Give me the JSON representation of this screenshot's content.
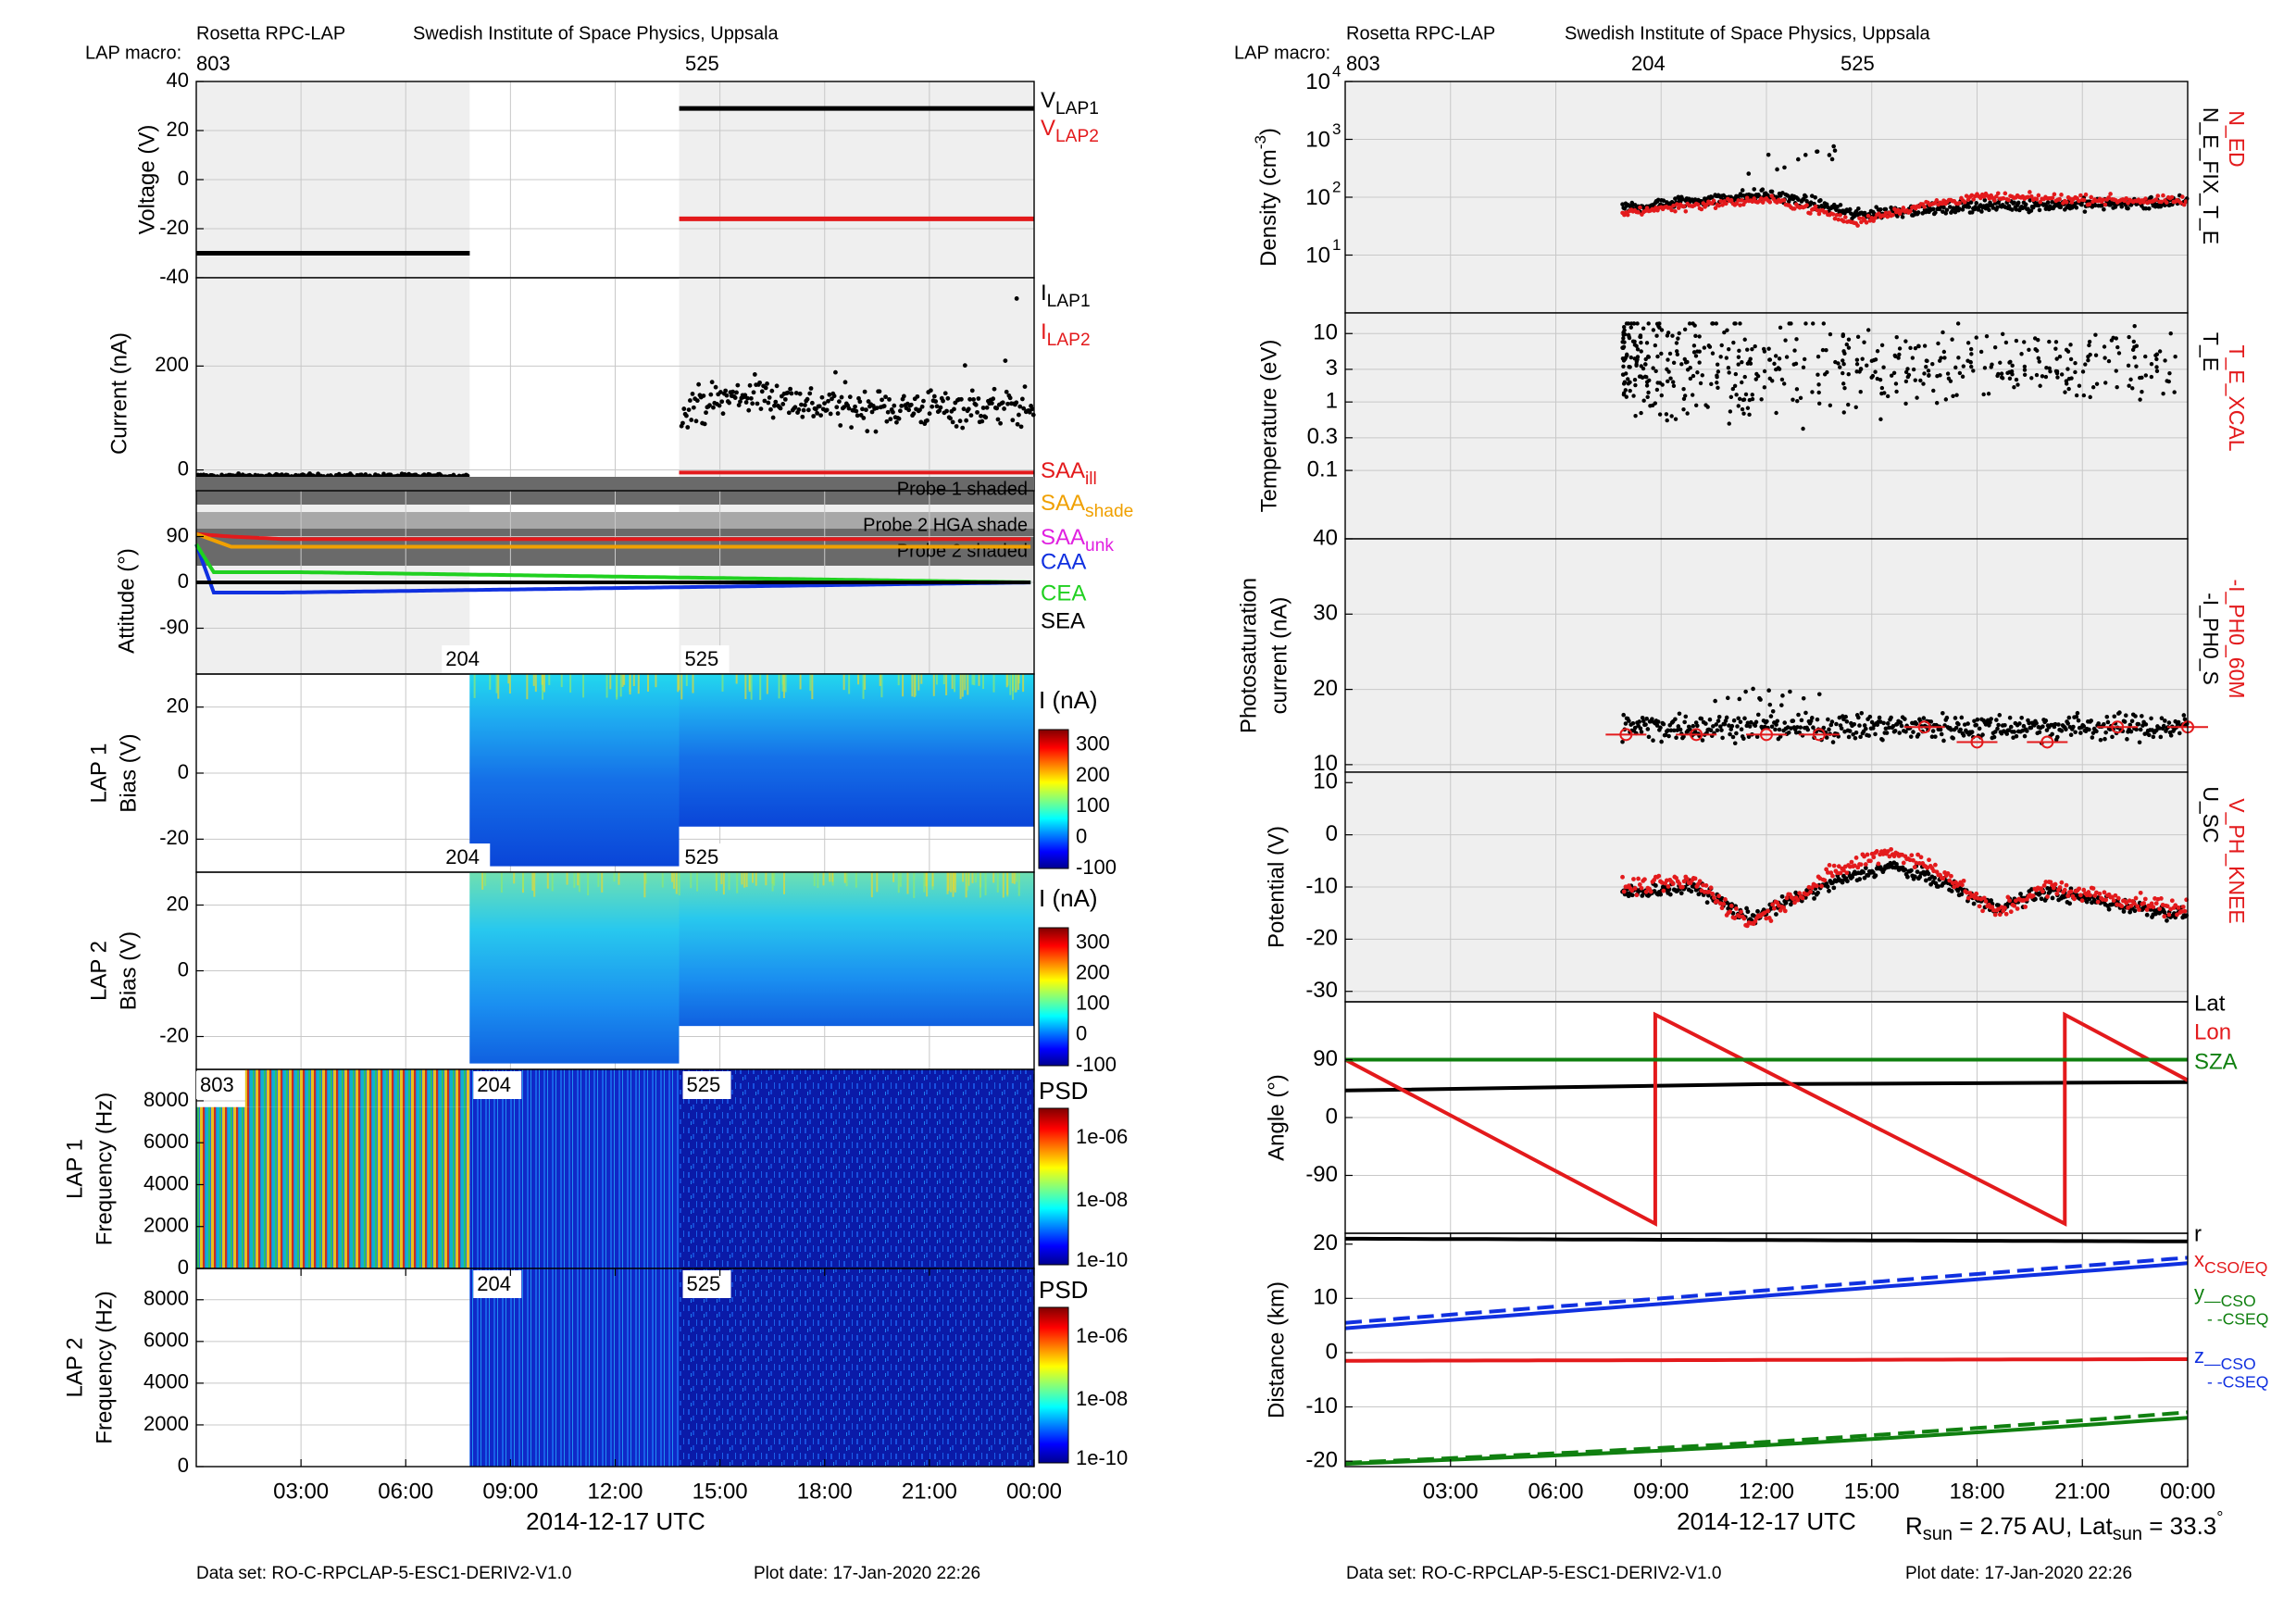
{
  "colors": {
    "black": "#000000",
    "red": "#e31a1c",
    "orange": "#f0a000",
    "magenta": "#e020e0",
    "blue": "#1030e0",
    "green": "#20d020",
    "darkgreen": "#108010",
    "panel_bg": "#efefef",
    "shade_dark": "#6a6a6a",
    "shade_light": "#a8a8a8"
  },
  "left": {
    "header": {
      "instrument": "Rosetta RPC-LAP",
      "institute": "Swedish Institute of Space Physics, Uppsala",
      "macro_label": "LAP macro:",
      "macros": [
        "803",
        "525"
      ]
    },
    "footer": {
      "dataset": "Data set: RO-C-RPCLAP-5-ESC1-DERIV2-V1.0",
      "plotdate": "Plot date: 17-Jan-2020 22:26"
    },
    "xaxis": {
      "ticks": [
        "03:00",
        "06:00",
        "09:00",
        "12:00",
        "15:00",
        "18:00",
        "21:00",
        "00:00"
      ],
      "label": "2014-12-17 UTC"
    },
    "panels": {
      "voltage": {
        "ylabel": "Voltage (V)",
        "ticks": [
          "40",
          "20",
          "0",
          "-20",
          "-40"
        ]
      },
      "current": {
        "ylabel": "Current (nA)",
        "ticks": [
          "200",
          "0"
        ]
      },
      "attitude": {
        "ylabel": "Attitude (°)",
        "ticks": [
          "90",
          "0",
          "-90"
        ]
      },
      "lap1bias": {
        "ylabel1": "LAP 1",
        "ylabel2": "Bias (V)",
        "ticks": [
          "20",
          "0",
          "-20"
        ],
        "tags": [
          "204",
          "525"
        ]
      },
      "lap2bias": {
        "ylabel1": "LAP 2",
        "ylabel2": "Bias (V)",
        "ticks": [
          "20",
          "0",
          "-20"
        ],
        "tags": [
          "204",
          "525"
        ]
      },
      "lap1freq": {
        "ylabel1": "LAP 1",
        "ylabel2": "Frequency (Hz)",
        "ticks": [
          "8000",
          "6000",
          "4000",
          "2000",
          "0"
        ],
        "tags": [
          "803",
          "204",
          "525"
        ]
      },
      "lap2freq": {
        "ylabel1": "LAP 2",
        "ylabel2": "Frequency (Hz)",
        "ticks": [
          "8000",
          "6000",
          "4000",
          "2000",
          "0"
        ],
        "tags": [
          "204",
          "525"
        ]
      }
    },
    "legends": {
      "voltage": [
        {
          "base": "V",
          "sub": "LAP1"
        },
        {
          "base": "V",
          "sub": "LAP2"
        }
      ],
      "current": [
        {
          "base": "I",
          "sub": "LAP1"
        },
        {
          "base": "I",
          "sub": "LAP2"
        }
      ],
      "attitude": [
        {
          "base": "SAA",
          "sub": "ill"
        },
        {
          "base": "SAA",
          "sub": "shade"
        },
        {
          "base": "SAA",
          "sub": "unk"
        },
        {
          "base": "CAA",
          "sub": ""
        },
        {
          "base": "CEA",
          "sub": ""
        },
        {
          "base": "SEA",
          "sub": ""
        }
      ],
      "shades": [
        "Probe 1 shaded",
        "Probe 2 HGA shade",
        "Probe 2 shaded"
      ]
    },
    "colorbars": {
      "bias1": {
        "title": "I (nA)",
        "ticks": [
          "300",
          "200",
          "100",
          "0",
          "-100"
        ]
      },
      "bias2": {
        "title": "I (nA)",
        "ticks": [
          "300",
          "200",
          "100",
          "0",
          "-100"
        ]
      },
      "psd1": {
        "title": "PSD",
        "ticks": [
          "1e-06",
          "1e-08",
          "1e-10"
        ]
      },
      "psd2": {
        "title": "PSD",
        "ticks": [
          "1e-06",
          "1e-08",
          "1e-10"
        ]
      }
    }
  },
  "right": {
    "header": {
      "instrument": "Rosetta RPC-LAP",
      "institute": "Swedish Institute of Space Physics, Uppsala",
      "macro_label": "LAP macro:",
      "macros": [
        "803",
        "204",
        "525"
      ]
    },
    "footer": {
      "dataset": "Data set: RO-C-RPCLAP-5-ESC1-DERIV2-V1.0",
      "plotdate": "Plot date: 17-Jan-2020 22:26"
    },
    "xaxis": {
      "ticks": [
        "03:00",
        "06:00",
        "09:00",
        "12:00",
        "15:00",
        "18:00",
        "21:00",
        "00:00"
      ],
      "label": "2014-12-17 UTC"
    },
    "rsun": {
      "r_label": "R",
      "r_sub": "sun",
      "r_val": " = 2.75 AU, Lat",
      "lat_sub": "sun",
      "lat_val": " = 33.3",
      "deg": "°"
    },
    "panels": {
      "density": {
        "ylabel": "Density (cm",
        "ylabel_sup": "-3",
        "ylabel_end": ")",
        "ticks": [
          "4",
          "3",
          "2",
          "1"
        ],
        "tick_base": "10"
      },
      "temperature": {
        "ylabel": "Temperature (eV)",
        "ticks": [
          "10",
          "3",
          "1",
          "0.3",
          "0.1"
        ]
      },
      "photo": {
        "ylabel1": "Photosaturation",
        "ylabel2": "current (nA)",
        "ticks": [
          "40",
          "30",
          "20",
          "10"
        ]
      },
      "potential": {
        "ylabel": "Potential (V)",
        "ticks": [
          "10",
          "0",
          "-10",
          "-20",
          "-30"
        ]
      },
      "angle": {
        "ylabel": "Angle (°)",
        "ticks": [
          "90",
          "0",
          "-90"
        ]
      },
      "distance": {
        "ylabel": "Distance (km)",
        "ticks": [
          "20",
          "10",
          "0",
          "-10",
          "-20"
        ]
      }
    },
    "legends": {
      "density": [
        "N_ED",
        "N_E_FIX_T_E"
      ],
      "temperature": [
        "T_E_XCAL",
        "T_E"
      ],
      "photo": [
        "-I_PH0_60M",
        "-I_PH0_S"
      ],
      "potential": [
        "V_PH_KNEE",
        "U_SC"
      ],
      "angle": [
        "Lat",
        "Lon",
        "SZA"
      ],
      "distance_r": "r",
      "distance_x": {
        "base": "x",
        "sub": "CSO/EQ"
      },
      "distance_y": {
        "base": "y",
        "sub": "—CSO",
        "sub2": "- -CSEQ"
      },
      "distance_z": {
        "base": "z",
        "sub": "—CSO",
        "sub2": "- -CSEQ"
      }
    }
  },
  "chart_data": [
    {
      "type": "line",
      "title": "Rosetta RPC-LAP",
      "xlabel": "2014-12-17 UTC",
      "ylabel": "Voltage (V)",
      "ylim": [
        -40,
        40
      ],
      "series": [
        {
          "name": "VLAP1",
          "segments": [
            {
              "x": [
                "00:00",
                "07:50"
              ],
              "y": [
                -30,
                -30
              ]
            },
            {
              "x": [
                "13:50",
                "24:00"
              ],
              "y": [
                29,
                29
              ]
            }
          ]
        },
        {
          "name": "VLAP2",
          "segments": [
            {
              "x": [
                "13:50",
                "24:00"
              ],
              "y": [
                -16,
                -16
              ]
            }
          ]
        }
      ]
    },
    {
      "type": "scatter",
      "ylabel": "Current (nA)",
      "ylim": [
        -40,
        370
      ],
      "series": [
        {
          "name": "ILAP1",
          "description_values": [
            {
              "x": "00:00-07:50",
              "y": -10
            },
            {
              "x": "13:50-24:00",
              "y_range": [
                70,
                330
              ],
              "y_typical": 120
            }
          ]
        },
        {
          "name": "ILAP2",
          "description_values": [
            {
              "x": "13:50-24:00",
              "y": -5
            }
          ]
        }
      ]
    },
    {
      "type": "line",
      "ylabel": "Attitude (°)",
      "ylim": [
        -180,
        180
      ],
      "series": [
        {
          "name": "SAAill",
          "x": [
            "00:00",
            "01:00",
            "02:30",
            "24:00"
          ],
          "y": [
            95,
            90,
            85,
            85
          ]
        },
        {
          "name": "SAAshade",
          "x": [
            "00:00",
            "01:00",
            "03:00",
            "24:00"
          ],
          "y": [
            95,
            70,
            70,
            70
          ]
        },
        {
          "name": "CAA",
          "x": [
            "00:00",
            "00:30",
            "02:30",
            "24:00"
          ],
          "y": [
            75,
            -20,
            -20,
            0
          ]
        },
        {
          "name": "CEA",
          "x": [
            "00:00",
            "00:30",
            "03:00",
            "24:00"
          ],
          "y": [
            75,
            20,
            20,
            0
          ]
        },
        {
          "name": "SEA",
          "x": [
            "00:00",
            "24:00"
          ],
          "y": [
            0,
            0
          ]
        }
      ]
    },
    {
      "type": "heatmap",
      "ylabel": "LAP 1 Bias (V)",
      "ylim": [
        -30,
        30
      ],
      "colorbar": {
        "title": "I (nA)",
        "range": [
          -100,
          350
        ]
      },
      "segments": [
        "204: 07:50-13:50",
        "525: 13:50-24:00"
      ]
    },
    {
      "type": "heatmap",
      "ylabel": "LAP 2 Bias (V)",
      "ylim": [
        -30,
        30
      ],
      "colorbar": {
        "title": "I (nA)",
        "range": [
          -100,
          350
        ]
      },
      "segments": [
        "204: 07:50-13:50",
        "525: 13:50-24:00"
      ]
    },
    {
      "type": "heatmap",
      "ylabel": "LAP 1 Frequency (Hz)",
      "ylim": [
        0,
        9500
      ],
      "colorbar": {
        "title": "PSD",
        "range": [
          "1e-10",
          "1e-05"
        ],
        "scale": "log"
      },
      "segments": [
        "803: 00:00-07:50",
        "204: 07:50-13:50",
        "525: 13:50-24:00"
      ]
    },
    {
      "type": "heatmap",
      "ylabel": "LAP 2 Frequency (Hz)",
      "ylim": [
        0,
        9500
      ],
      "colorbar": {
        "title": "PSD",
        "range": [
          "1e-10",
          "1e-05"
        ],
        "scale": "log"
      },
      "segments": [
        "204: 07:50-13:50",
        "525: 13:50-24:00"
      ]
    },
    {
      "type": "scatter",
      "ylabel": "Density (cm-3)",
      "yscale": "log",
      "ylim": [
        1,
        10000
      ],
      "series": [
        {
          "name": "N_ED",
          "x": [
            "08:00",
            "12:00",
            "14:30",
            "18:00",
            "24:00"
          ],
          "y": [
            55,
            90,
            35,
            100,
            85
          ]
        },
        {
          "name": "N_E_FIX_T_E",
          "x": [
            "08:00",
            "12:00",
            "14:30",
            "18:00",
            "24:00"
          ],
          "y": [
            65,
            110,
            50,
            70,
            80
          ]
        }
      ]
    },
    {
      "type": "scatter",
      "ylabel": "Temperature (eV)",
      "yscale": "log",
      "ylim": [
        0.01,
        20
      ],
      "series": [
        {
          "name": "T_E",
          "x_range": [
            "08:00",
            "24:00"
          ],
          "y_range": [
            0.15,
            14
          ]
        }
      ]
    },
    {
      "type": "scatter",
      "ylabel": "Photosaturation current (nA)",
      "ylim": [
        0,
        40
      ],
      "series": [
        {
          "name": "-I_PH0_60M",
          "x": [
            "08:00",
            "10:00",
            "12:00",
            "13:30",
            "16:30",
            "18:00",
            "20:00",
            "22:00",
            "24:00"
          ],
          "y": [
            14,
            14,
            14,
            14,
            15,
            13,
            13,
            15,
            15
          ]
        },
        {
          "name": "-I_PH0_S",
          "x_range": [
            "08:00",
            "24:00"
          ],
          "y_typical": 15
        }
      ]
    },
    {
      "type": "scatter",
      "ylabel": "Potential (V)",
      "ylim": [
        -32,
        12
      ],
      "series": [
        {
          "name": "V_PH_KNEE",
          "x": [
            "08:00",
            "10:00",
            "11:30",
            "14:00",
            "15:30",
            "17:00",
            "18:30",
            "20:00",
            "23:30"
          ],
          "y": [
            -10,
            -9,
            -17,
            -7,
            -3,
            -7,
            -15,
            -10,
            -14
          ]
        },
        {
          "name": "U_SC",
          "x": [
            "08:00",
            "10:00",
            "11:30",
            "14:00",
            "15:30",
            "17:00",
            "18:30",
            "20:00",
            "23:30"
          ],
          "y": [
            -11,
            -10,
            -16,
            -9,
            -6,
            -9,
            -14,
            -11,
            -15
          ]
        }
      ]
    },
    {
      "type": "line",
      "ylabel": "Angle (°)",
      "ylim": [
        -180,
        180
      ],
      "series": [
        {
          "name": "Lat",
          "x": [
            "00:00",
            "12:00",
            "24:00"
          ],
          "y": [
            42,
            52,
            55
          ]
        },
        {
          "name": "Lon",
          "x": [
            "00:00",
            "08:50",
            "08:50",
            "20:30",
            "20:30",
            "24:00"
          ],
          "y": [
            90,
            -165,
            160,
            -165,
            160,
            58
          ]
        },
        {
          "name": "SZA",
          "x": [
            "00:00",
            "24:00"
          ],
          "y": [
            90,
            90
          ]
        }
      ]
    },
    {
      "type": "line",
      "ylabel": "Distance (km)",
      "ylim": [
        -21,
        22
      ],
      "series": [
        {
          "name": "r",
          "x": [
            "00:00",
            "24:00"
          ],
          "y": [
            21,
            20.5
          ]
        },
        {
          "name": "xCSO/EQ",
          "x": [
            "00:00",
            "24:00"
          ],
          "y": [
            -1.5,
            -1.2
          ]
        },
        {
          "name": "yCSO",
          "x": [
            "00:00",
            "24:00"
          ],
          "y": [
            -20.5,
            -12
          ]
        },
        {
          "name": "yCSEQ",
          "x": [
            "00:00",
            "24:00"
          ],
          "y": [
            -20.3,
            -11
          ]
        },
        {
          "name": "zCSO",
          "x": [
            "00:00",
            "24:00"
          ],
          "y": [
            4.5,
            16.5
          ]
        },
        {
          "name": "zCSEQ",
          "x": [
            "00:00",
            "24:00"
          ],
          "y": [
            5.5,
            17.5
          ]
        }
      ]
    }
  ]
}
